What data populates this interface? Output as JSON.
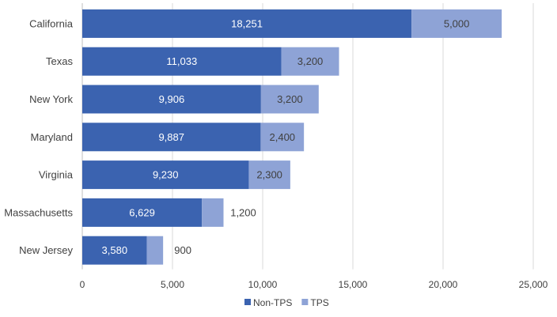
{
  "chart_data": {
    "type": "bar",
    "orientation": "horizontal",
    "stacked": true,
    "categories": [
      "California",
      "Texas",
      "New York",
      "Maryland",
      "Virginia",
      "Massachusetts",
      "New Jersey"
    ],
    "series": [
      {
        "name": "Non-TPS",
        "color": "#3b63b0",
        "values": [
          18251,
          11033,
          9906,
          9887,
          9230,
          6629,
          3580
        ],
        "labels": [
          "18,251",
          "11,033",
          "9,906",
          "9,887",
          "9,230",
          "6,629",
          "3,580"
        ]
      },
      {
        "name": "TPS",
        "color": "#8ea3d6",
        "values": [
          5000,
          3200,
          3200,
          2400,
          2300,
          1200,
          900
        ],
        "labels": [
          "5,000",
          "3,200",
          "3,200",
          "2,400",
          "2,300",
          "1,200",
          "900"
        ]
      }
    ],
    "xlim": [
      0,
      25000
    ],
    "xticks": [
      0,
      5000,
      10000,
      15000,
      20000,
      25000
    ],
    "xtick_labels": [
      "0",
      "5,000",
      "10,000",
      "15,000",
      "20,000",
      "25,000"
    ],
    "grid": true,
    "legend_position": "bottom",
    "title": "",
    "xlabel": "",
    "ylabel": ""
  }
}
